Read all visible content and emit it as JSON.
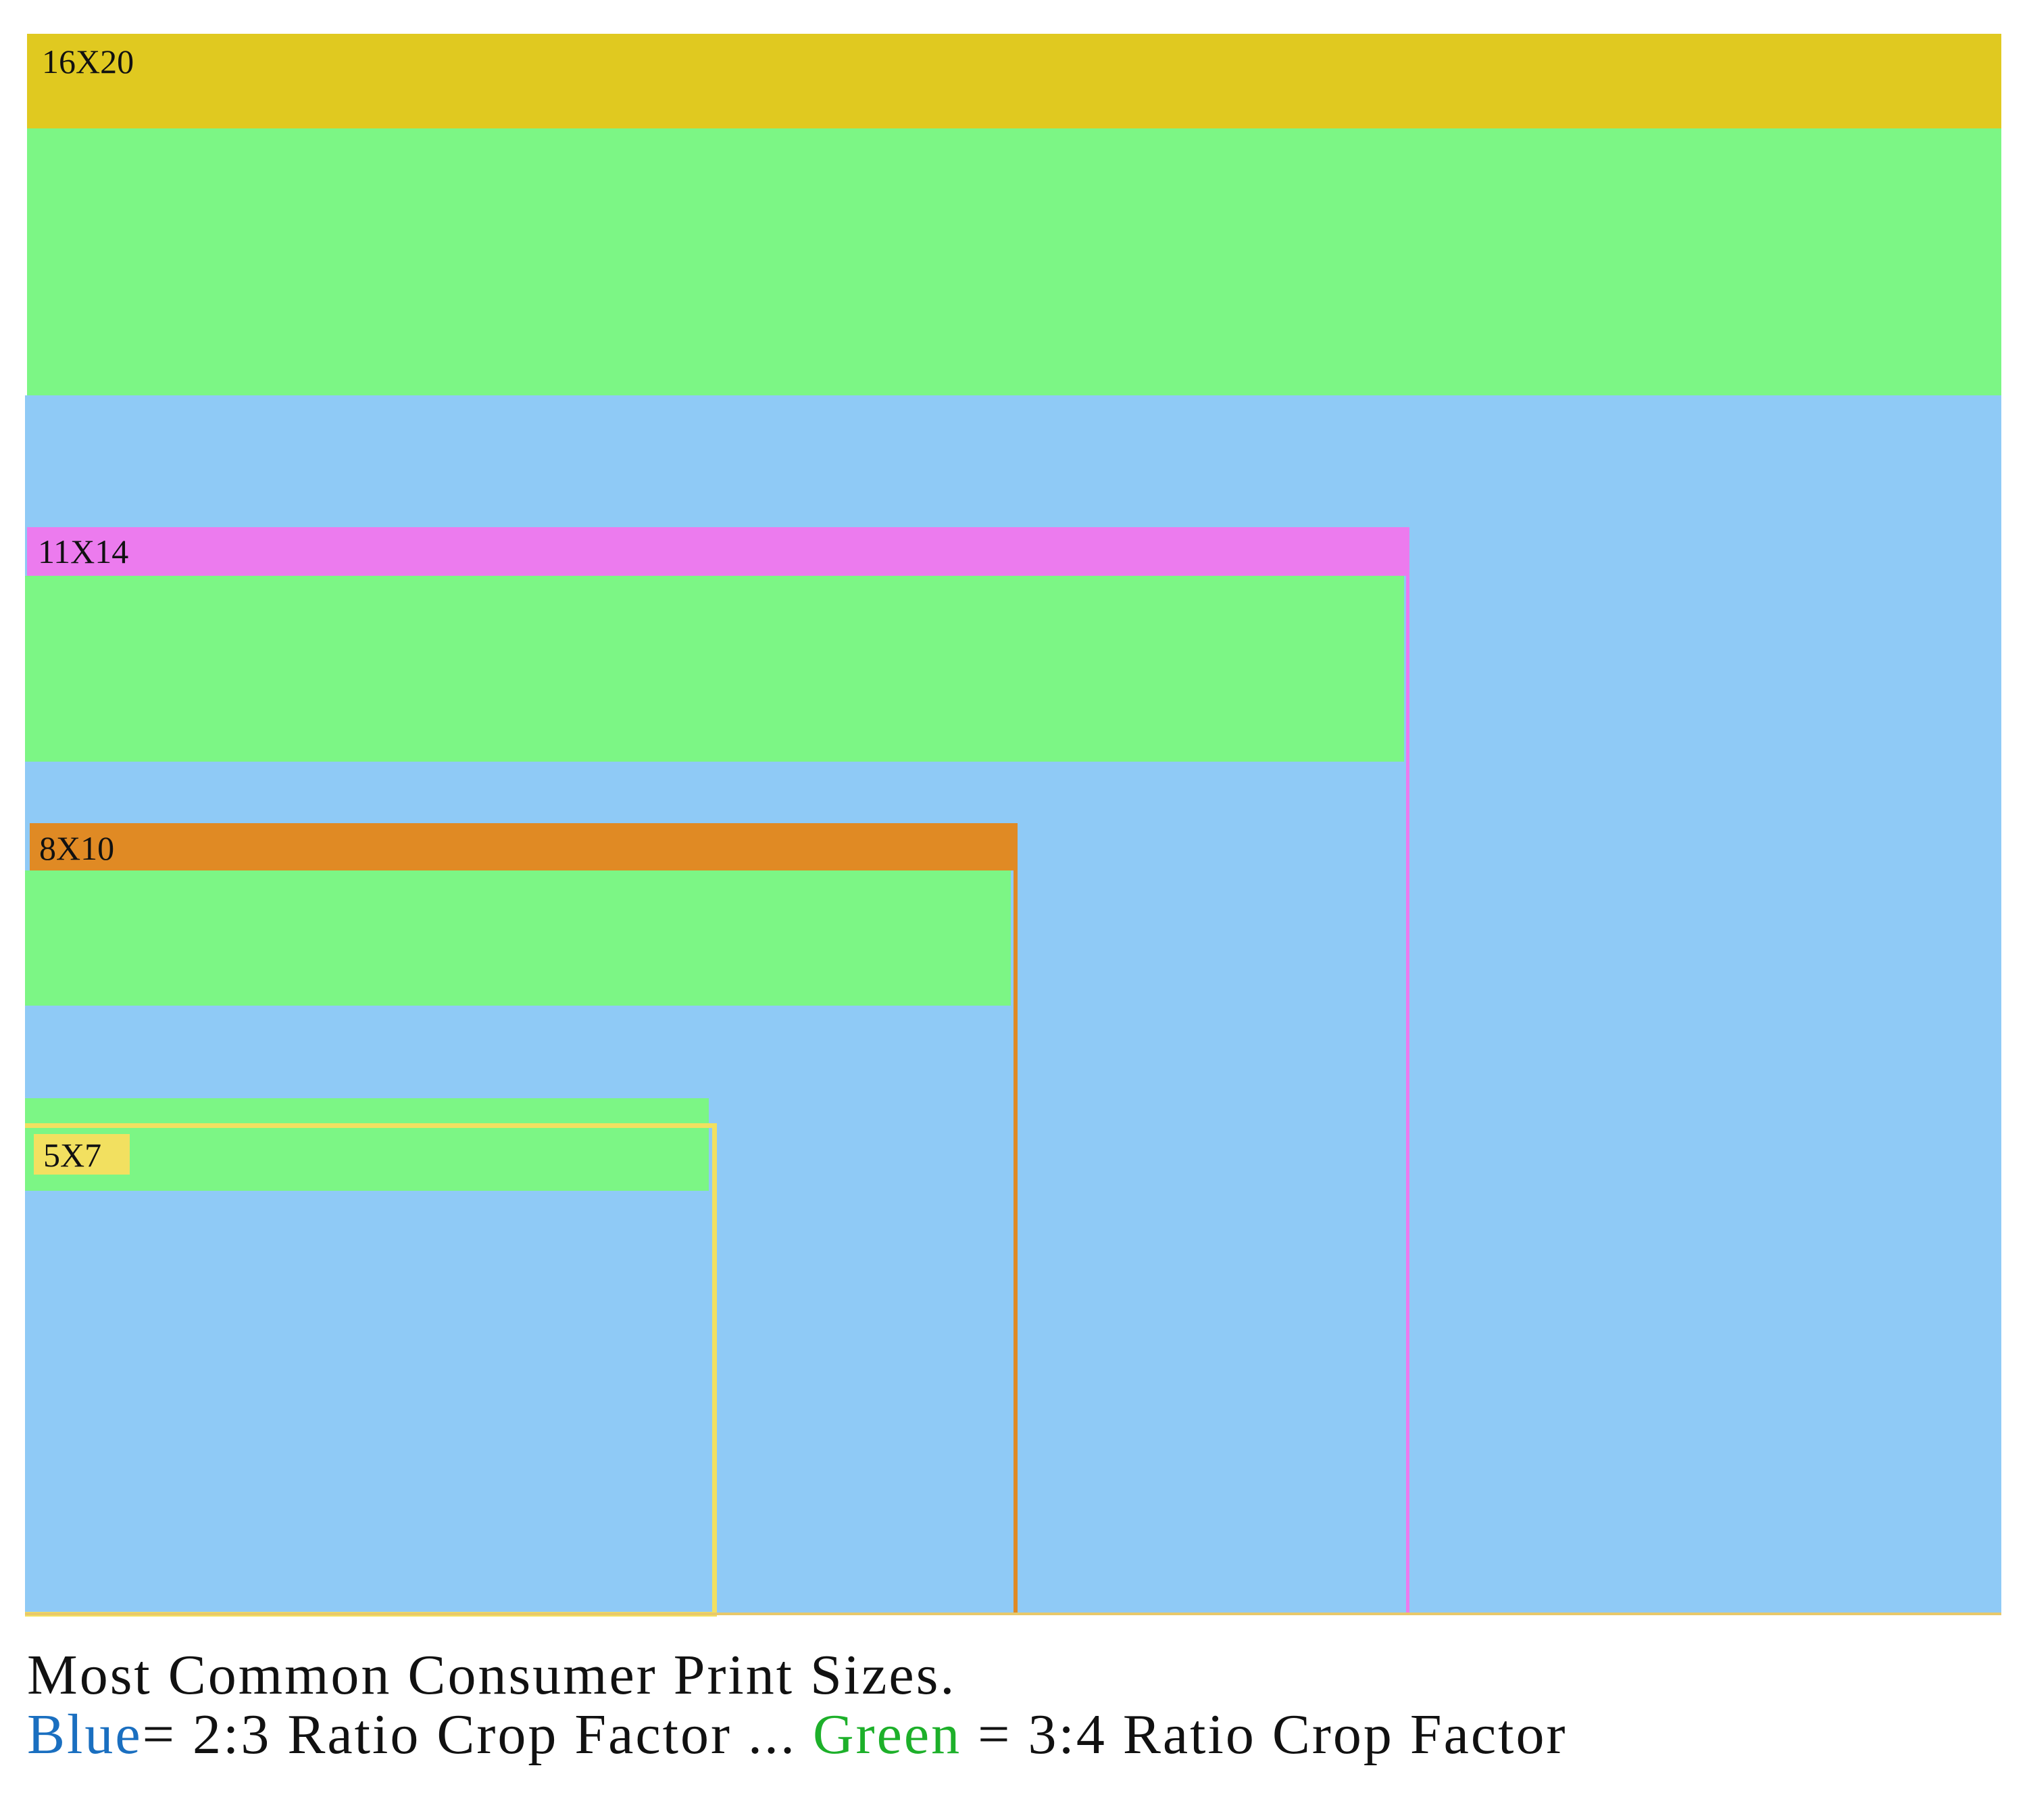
{
  "prints": [
    {
      "id": "16x20",
      "label": "16X20",
      "frame_color": "#E0C920",
      "blue_color": "#8FCAF6",
      "green_color": "#7CF685"
    },
    {
      "id": "11x14",
      "label": "11X14",
      "frame_color": "#EC7BEE"
    },
    {
      "id": "8x10",
      "label": "8X10",
      "frame_color": "#E08A24"
    },
    {
      "id": "5x7",
      "label": "5X7",
      "frame_color": "#F2E060"
    }
  ],
  "caption": {
    "line1": "Most Common Consumer Print Sizes.",
    "blue_word": "Blue",
    "blue_rest": "= 2:3 Ratio Crop Factor ... ",
    "green_word": "Green",
    "green_rest": " = 3:4 Ratio Crop Factor",
    "blue_color": "#1A6FC0",
    "green_color": "#1DB02A"
  }
}
